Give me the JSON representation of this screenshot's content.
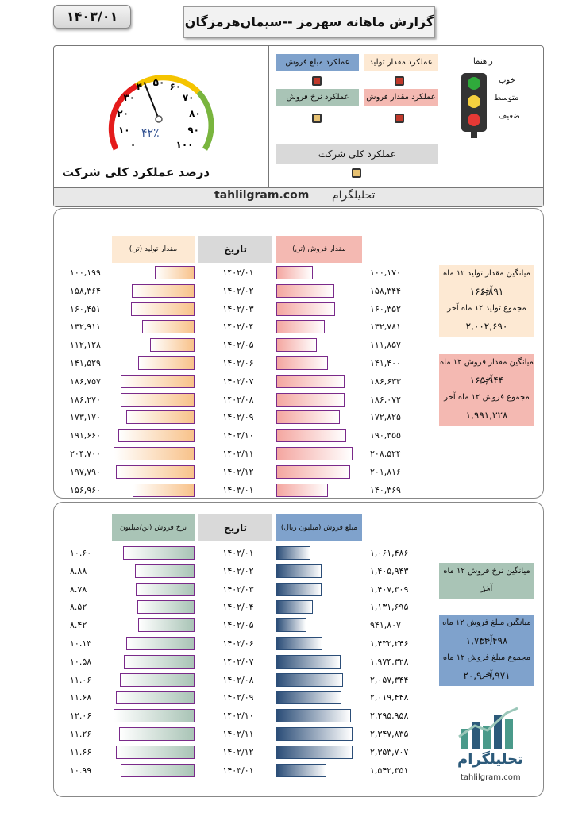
{
  "header": {
    "date": "۱۴۰۳/۰۱",
    "title": "گزارش ماهانه سهرمز --سیمان‌هرمزگان"
  },
  "gauge": {
    "value_label": "۴۲٪",
    "value": 42,
    "ticks": [
      "۰",
      "۱۰",
      "۲۰",
      "۳۰",
      "۴۰",
      "۵۰",
      "۶۰",
      "۷۰",
      "۸۰",
      "۹۰",
      "۱۰۰"
    ],
    "title": "درصد عملکرد کلی شرکت"
  },
  "performance": {
    "production_amount": "عملکرد مقدار تولید",
    "sales_value": "عملکرد مبلغ فروش",
    "sales_amount": "عملکرد مقدار فروش",
    "sales_rate": "عملکرد نرخ فروش",
    "overall": "عملکرد کلی شرکت",
    "colors": {
      "production_amount": "#fde9d3",
      "sales_value": "#7fa2cc",
      "sales_amount": "#f4b9b2",
      "sales_rate": "#a9c4b6",
      "overall": "#d9d9d9",
      "lamp_red": "#c0392b",
      "lamp_yellow": "#e6c172"
    }
  },
  "legend": {
    "guide": "راهنما",
    "good": "خوب",
    "medium": "متوسط",
    "weak": "ضعیف"
  },
  "brand": {
    "en": "tahlilgram.com",
    "fa": "تحلیلگرام"
  },
  "table1": {
    "headers": {
      "production": "مقدار تولید (تن)",
      "date": "تاریخ",
      "sales": "مقدار فروش (تن)"
    },
    "rows": [
      {
        "date": "۱۴۰۲/۰۱",
        "production": "۱۰۰,۱۹۹",
        "sales": "۱۰۰,۱۷۰"
      },
      {
        "date": "۱۴۰۲/۰۲",
        "production": "۱۵۸,۳۶۴",
        "sales": "۱۵۸,۳۴۴"
      },
      {
        "date": "۱۴۰۲/۰۳",
        "production": "۱۶۰,۴۵۱",
        "sales": "۱۶۰,۳۵۲"
      },
      {
        "date": "۱۴۰۲/۰۴",
        "production": "۱۳۲,۹۱۱",
        "sales": "۱۳۲,۷۸۱"
      },
      {
        "date": "۱۴۰۲/۰۵",
        "production": "۱۱۲,۱۲۸",
        "sales": "۱۱۱,۸۵۷"
      },
      {
        "date": "۱۴۰۲/۰۶",
        "production": "۱۴۱,۵۲۹",
        "sales": "۱۴۱,۴۰۰"
      },
      {
        "date": "۱۴۰۲/۰۷",
        "production": "۱۸۶,۷۵۷",
        "sales": "۱۸۶,۶۳۳"
      },
      {
        "date": "۱۴۰۲/۰۸",
        "production": "۱۸۶,۲۷۰",
        "sales": "۱۸۶,۰۷۲"
      },
      {
        "date": "۱۴۰۲/۰۹",
        "production": "۱۷۳,۱۷۰",
        "sales": "۱۷۲,۸۲۵"
      },
      {
        "date": "۱۴۰۲/۱۰",
        "production": "۱۹۱,۶۶۰",
        "sales": "۱۹۰,۳۵۵"
      },
      {
        "date": "۱۴۰۲/۱۱",
        "production": "۲۰۴,۷۰۰",
        "sales": "۲۰۸,۵۲۴"
      },
      {
        "date": "۱۴۰۲/۱۲",
        "production": "۱۹۷,۷۹۰",
        "sales": "۲۰۱,۸۱۶"
      },
      {
        "date": "۱۴۰۳/۰۱",
        "production": "۱۵۶,۹۶۰",
        "sales": "۱۴۰,۳۶۹"
      }
    ],
    "prod_values": [
      100199,
      158364,
      160451,
      132911,
      112128,
      141529,
      186757,
      186270,
      173170,
      191660,
      204700,
      197790,
      156960
    ],
    "sales_values": [
      100170,
      158344,
      160352,
      132781,
      111857,
      141400,
      186633,
      186072,
      172825,
      190355,
      208524,
      201816,
      140369
    ],
    "info_prod": {
      "avg_label": "میانگین مقدار تولید ۱۲ ماه آخر",
      "avg": "۱۶۶,۸۹۱",
      "sum_label": "مجموع تولید ۱۲ ماه آخر",
      "sum": "۲,۰۰۲,۶۹۰"
    },
    "info_sales": {
      "avg_label": "میانگین مقدار فروش ۱۲ ماه آخر",
      "avg": "۱۶۵,۹۴۴",
      "sum_label": "مجموع فروش ۱۲ ماه آخر",
      "sum": "۱,۹۹۱,۳۲۸"
    }
  },
  "table2": {
    "headers": {
      "rate": "نرخ فروش (تن/میلیون ریال)",
      "date": "تاریخ",
      "value": "مبلغ فروش (میلیون ریال)"
    },
    "rows": [
      {
        "date": "۱۴۰۲/۰۱",
        "rate": "۱۰.۶۰",
        "value": "۱,۰۶۱,۴۸۶"
      },
      {
        "date": "۱۴۰۲/۰۲",
        "rate": "۸.۸۸",
        "value": "۱,۴۰۵,۹۴۳"
      },
      {
        "date": "۱۴۰۲/۰۳",
        "rate": "۸.۷۸",
        "value": "۱,۴۰۷,۳۰۹"
      },
      {
        "date": "۱۴۰۲/۰۴",
        "rate": "۸.۵۲",
        "value": "۱,۱۳۱,۶۹۵"
      },
      {
        "date": "۱۴۰۲/۰۵",
        "rate": "۸.۴۲",
        "value": "۹۴۱,۸۰۷"
      },
      {
        "date": "۱۴۰۲/۰۶",
        "rate": "۱۰.۱۳",
        "value": "۱,۴۳۲,۲۴۶"
      },
      {
        "date": "۱۴۰۲/۰۷",
        "rate": "۱۰.۵۸",
        "value": "۱,۹۷۴,۳۲۸"
      },
      {
        "date": "۱۴۰۲/۰۸",
        "rate": "۱۱.۰۶",
        "value": "۲,۰۵۷,۳۴۴"
      },
      {
        "date": "۱۴۰۲/۰۹",
        "rate": "۱۱.۶۸",
        "value": "۲,۰۱۹,۴۴۸"
      },
      {
        "date": "۱۴۰۲/۱۰",
        "rate": "۱۲.۰۶",
        "value": "۲,۲۹۵,۹۵۸"
      },
      {
        "date": "۱۴۰۲/۱۱",
        "rate": "۱۱.۲۶",
        "value": "۲,۳۴۷,۸۳۵"
      },
      {
        "date": "۱۴۰۲/۱۲",
        "rate": "۱۱.۶۶",
        "value": "۲,۳۵۳,۷۰۷"
      },
      {
        "date": "۱۴۰۳/۰۱",
        "rate": "۱۰.۹۹",
        "value": "۱,۵۴۲,۳۵۱"
      }
    ],
    "rate_values": [
      10.6,
      8.88,
      8.78,
      8.52,
      8.42,
      10.13,
      10.58,
      11.06,
      11.68,
      12.06,
      11.26,
      11.66,
      10.99
    ],
    "value_values": [
      1061486,
      1405943,
      1407309,
      1131695,
      941807,
      1432246,
      1974328,
      2057344,
      2019448,
      2295958,
      2347835,
      2353707,
      1542351
    ],
    "info_rate": {
      "avg_label": "میانگین نرخ فروش ۱۲ ماه آخر",
      "avg": "۱۰"
    },
    "info_value": {
      "avg_label": "میانگین مبلغ فروش ۱۲ ماه آخر",
      "avg": "۱,۷۴۲,۴۹۸",
      "sum_label": "مجموع مبلغ فروش ۱۲ ماه آخر",
      "sum": "۲۰,۹۰۹,۹۷۱"
    }
  },
  "logo": {
    "fa": "تحلیلگرام",
    "en": "tahlilgram.com"
  }
}
